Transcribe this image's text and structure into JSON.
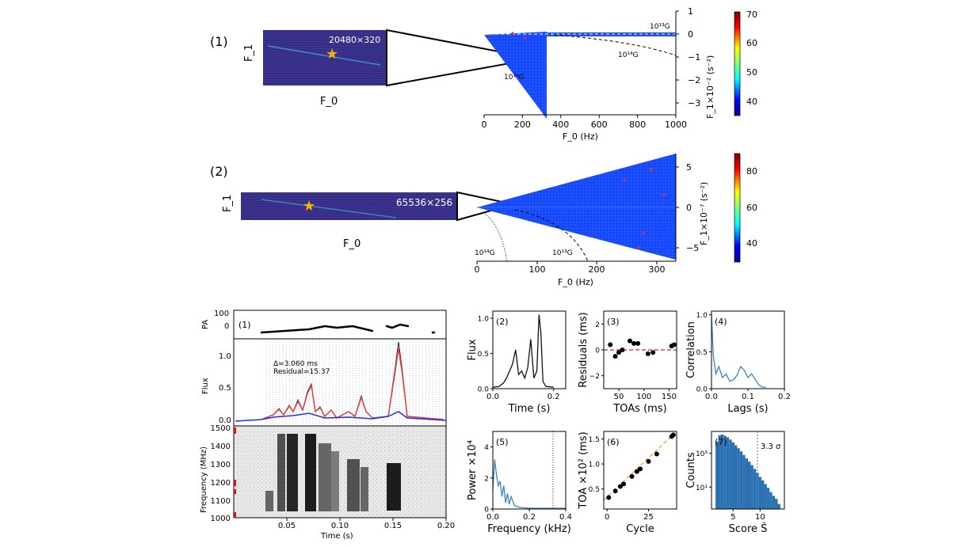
{
  "top": {
    "label": "(1)",
    "inset_label": "20480×320",
    "inset_x_axis": "F_0",
    "inset_y_axis": "F_1",
    "annotations": [
      "10¹³G",
      "10¹⁴G",
      "10¹⁵G"
    ],
    "colorbar_ticks": [
      "70",
      "60",
      "50",
      "40"
    ],
    "chart_data": {
      "type": "heatmap",
      "xlabel": "F_0 (Hz)",
      "ylabel": "F_1×10⁻² (s⁻²)",
      "xlim": [
        0,
        1000
      ],
      "ylim": [
        -3.5,
        1
      ],
      "xticks": [
        "0",
        "200",
        "400",
        "600",
        "800",
        "1000"
      ],
      "yticks": [
        "1",
        "0",
        "−1",
        "−2",
        "−3"
      ],
      "colorbar": {
        "range": [
          35,
          70
        ],
        "ticks": [
          "70",
          "60",
          "50",
          "40"
        ]
      }
    }
  },
  "middle": {
    "label": "(2)",
    "inset_label": "65536×256",
    "inset_x_axis": "F_0",
    "inset_y_axis": "F_1",
    "annotations": [
      "10¹⁴G",
      "10¹³G"
    ],
    "chart_data": {
      "type": "heatmap",
      "xlabel": "F_0 (Hz)",
      "ylabel": "F_1×10⁻⁷ (s⁻²)",
      "xlim": [
        0,
        330
      ],
      "ylim": [
        -6.5,
        6.5
      ],
      "xticks": [
        "0",
        "100",
        "200",
        "300"
      ],
      "yticks": [
        "5",
        "0",
        "−5"
      ],
      "colorbar": {
        "range": [
          30,
          90
        ],
        "ticks": [
          "80",
          "60",
          "40"
        ]
      }
    }
  },
  "bottom_left": {
    "label": "(1)",
    "pa_panel": {
      "ylabel": "PA",
      "yticks": [
        "100",
        "0"
      ]
    },
    "flux_panel": {
      "ylabel": "Flux",
      "yticks": [
        "1.0",
        "0.5",
        "0.0"
      ],
      "annotation_delta": "Δ=3.060 ms",
      "annotation_residual": "Residual=15.37"
    },
    "spectrogram": {
      "ylabel": "Frequency (MHz)",
      "yticks": [
        "1500",
        "1400",
        "1300",
        "1200",
        "1100",
        "1000"
      ],
      "xlabel": "Time (s)",
      "xticks": [
        "0.05",
        "0.10",
        "0.15",
        "0.20"
      ]
    }
  },
  "chart_data": [
    {
      "type": "line",
      "label": "(2)",
      "xlabel": "Time (s)",
      "ylabel": "Flux",
      "xlim": [
        0,
        0.24
      ],
      "ylim": [
        0,
        1.1
      ],
      "xticks": [
        "0.0",
        "0.2"
      ],
      "yticks": [
        "0.0",
        "0.5",
        "1.0"
      ],
      "x": [
        0.0,
        0.02,
        0.035,
        0.045,
        0.055,
        0.065,
        0.075,
        0.085,
        0.095,
        0.105,
        0.115,
        0.125,
        0.135,
        0.145,
        0.152,
        0.158,
        0.165,
        0.175,
        0.2
      ],
      "y": [
        0.02,
        0.03,
        0.08,
        0.15,
        0.25,
        0.35,
        0.55,
        0.2,
        0.25,
        0.15,
        0.3,
        0.7,
        0.15,
        0.25,
        1.05,
        0.8,
        0.1,
        0.03,
        0.02
      ]
    },
    {
      "type": "scatter",
      "label": "(3)",
      "xlabel": "TOAs (ms)",
      "ylabel": "Residuals (ms)",
      "xlim": [
        20,
        165
      ],
      "ylim": [
        -3,
        3
      ],
      "xticks": [
        "50",
        "100",
        "150"
      ],
      "yticks": [
        "2",
        "0",
        "−2"
      ],
      "x": [
        33,
        43,
        50,
        57,
        72,
        80,
        88,
        108,
        118,
        155,
        160
      ],
      "y": [
        0.4,
        -0.5,
        -0.2,
        0.0,
        0.7,
        0.5,
        0.5,
        -0.3,
        -0.2,
        0.3,
        0.4
      ],
      "reference_line": 0
    },
    {
      "type": "line",
      "label": "(4)",
      "xlabel": "Lags (s)",
      "ylabel": "Correlation",
      "xlim": [
        0,
        0.2
      ],
      "ylim": [
        0,
        1.05
      ],
      "xticks": [
        "0.0",
        "0.1",
        "0.2"
      ],
      "yticks": [
        "0.0",
        "0.5",
        "1.0"
      ],
      "x": [
        0,
        0.005,
        0.012,
        0.02,
        0.03,
        0.04,
        0.05,
        0.06,
        0.07,
        0.08,
        0.09,
        0.1,
        0.11,
        0.13,
        0.14,
        0.15
      ],
      "y": [
        1.0,
        0.45,
        0.2,
        0.3,
        0.15,
        0.2,
        0.1,
        0.12,
        0.18,
        0.3,
        0.25,
        0.15,
        0.2,
        0.05,
        0.02,
        0.02
      ]
    },
    {
      "type": "line",
      "label": "(5)",
      "xlabel": "Frequency (kHz)",
      "ylabel": "Power ×10⁴",
      "xlim": [
        0,
        0.4
      ],
      "ylim": [
        0,
        5
      ],
      "xticks": [
        "0.0",
        "0.2",
        "0.4"
      ],
      "yticks": [
        "0",
        "2",
        "4"
      ],
      "x": [
        0,
        0.01,
        0.02,
        0.03,
        0.04,
        0.05,
        0.06,
        0.07,
        0.08,
        0.09,
        0.1,
        0.12,
        0.15,
        0.2,
        0.3,
        0.4
      ],
      "y": [
        1.2,
        3.2,
        2.2,
        1.5,
        1.8,
        0.8,
        1.5,
        0.4,
        1.0,
        0.3,
        0.8,
        0.2,
        0.1,
        0.05,
        0.05,
        0.05
      ],
      "reference_line": 0.33
    },
    {
      "type": "scatter",
      "label": "(6)",
      "xlabel": "Cycle",
      "ylabel": "TOA ×10² (ms)",
      "xlim": [
        -2,
        42
      ],
      "ylim": [
        0.1,
        1.65
      ],
      "xticks": [
        "0",
        "25"
      ],
      "yticks": [
        "0.5",
        "1.0",
        "1.5"
      ],
      "x": [
        1,
        5,
        8,
        10,
        15,
        18,
        20,
        25,
        30,
        39,
        40
      ],
      "y": [
        0.33,
        0.46,
        0.55,
        0.6,
        0.75,
        0.85,
        0.9,
        1.05,
        1.2,
        1.55,
        1.58
      ]
    },
    {
      "type": "bar",
      "label": "(7)",
      "xlabel": "Score Ŝ",
      "ylabel": "Counts",
      "log_y": true,
      "xlim": [
        1,
        14.5
      ],
      "ylim": [
        0.5,
        20000
      ],
      "xticks": [
        "5",
        "10"
      ],
      "yticks": [
        "10¹",
        "10³"
      ],
      "threshold": 9.5,
      "threshold_label": "3.3 σ",
      "x": [
        2,
        2.5,
        3,
        3.5,
        4,
        4.5,
        5,
        5.5,
        6,
        6.5,
        7,
        7.5,
        8,
        8.5,
        9,
        9.5,
        10,
        10.5,
        11,
        11.5,
        12,
        12.5,
        13,
        13.5
      ],
      "values": [
        5000,
        12000,
        13000,
        11000,
        9000,
        6500,
        4500,
        3000,
        2000,
        1300,
        800,
        500,
        320,
        200,
        120,
        70,
        40,
        25,
        15,
        9,
        5,
        3,
        2,
        1
      ]
    }
  ]
}
